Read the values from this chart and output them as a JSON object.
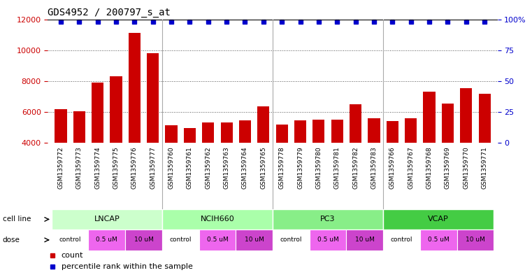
{
  "title": "GDS4952 / 200797_s_at",
  "samples": [
    "GSM1359772",
    "GSM1359773",
    "GSM1359774",
    "GSM1359775",
    "GSM1359776",
    "GSM1359777",
    "GSM1359760",
    "GSM1359761",
    "GSM1359762",
    "GSM1359763",
    "GSM1359764",
    "GSM1359765",
    "GSM1359778",
    "GSM1359779",
    "GSM1359780",
    "GSM1359781",
    "GSM1359782",
    "GSM1359783",
    "GSM1359766",
    "GSM1359767",
    "GSM1359768",
    "GSM1359769",
    "GSM1359770",
    "GSM1359771"
  ],
  "counts": [
    6200,
    6050,
    7900,
    8300,
    11100,
    9800,
    5150,
    4980,
    5320,
    5350,
    5450,
    6350,
    5200,
    5450,
    5500,
    5520,
    6500,
    5580,
    5400,
    5600,
    7300,
    6550,
    7550,
    7200
  ],
  "bar_color": "#cc0000",
  "dot_color": "#0000cc",
  "ylim": [
    4000,
    12000
  ],
  "yticks": [
    4000,
    6000,
    8000,
    10000,
    12000
  ],
  "right_yticks": [
    0,
    25,
    50,
    75,
    100
  ],
  "cell_lines": [
    {
      "name": "LNCAP",
      "start": 0,
      "end": 6,
      "color": "#ccffcc"
    },
    {
      "name": "NCIH660",
      "start": 6,
      "end": 12,
      "color": "#aaffaa"
    },
    {
      "name": "PC3",
      "start": 12,
      "end": 18,
      "color": "#88ee88"
    },
    {
      "name": "VCAP",
      "start": 18,
      "end": 24,
      "color": "#44cc44"
    }
  ],
  "dose_groups": [
    {
      "label": "control",
      "start": 0,
      "end": 2,
      "color": "#ffffff"
    },
    {
      "label": "0.5 uM",
      "start": 2,
      "end": 4,
      "color": "#ee66ee"
    },
    {
      "label": "10 uM",
      "start": 4,
      "end": 6,
      "color": "#cc44cc"
    },
    {
      "label": "control",
      "start": 6,
      "end": 8,
      "color": "#ffffff"
    },
    {
      "label": "0.5 uM",
      "start": 8,
      "end": 10,
      "color": "#ee66ee"
    },
    {
      "label": "10 uM",
      "start": 10,
      "end": 12,
      "color": "#cc44cc"
    },
    {
      "label": "control",
      "start": 12,
      "end": 14,
      "color": "#ffffff"
    },
    {
      "label": "0.5 uM",
      "start": 14,
      "end": 16,
      "color": "#ee66ee"
    },
    {
      "label": "10 uM",
      "start": 16,
      "end": 18,
      "color": "#cc44cc"
    },
    {
      "label": "control",
      "start": 18,
      "end": 20,
      "color": "#ffffff"
    },
    {
      "label": "0.5 uM",
      "start": 20,
      "end": 22,
      "color": "#ee66ee"
    },
    {
      "label": "10 uM",
      "start": 22,
      "end": 24,
      "color": "#cc44cc"
    }
  ],
  "legend_count_label": "count",
  "legend_pct_label": "percentile rank within the sample",
  "background_color": "#ffffff",
  "grid_color": "#555555",
  "tick_label_color": "#cc0000",
  "right_tick_color": "#0000cc",
  "separator_color": "#aaaaaa",
  "label_bg_color": "#dddddd",
  "cell_line_colors": {
    "LNCAP": "#ccffcc",
    "NCIH660": "#aaffaa",
    "PC3": "#88ee88",
    "VCAP": "#44cc44"
  },
  "dose_colors": {
    "control": "#ffffff",
    "0.5 uM": "#ee66ee",
    "10 uM": "#cc44cc"
  }
}
